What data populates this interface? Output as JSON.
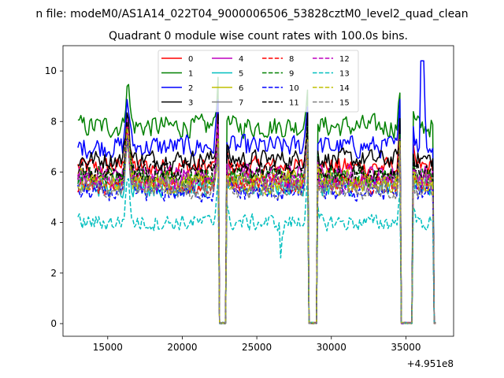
{
  "chart_data": {
    "type": "line",
    "suptitle": "n file: modeM0/AS1A14_022T04_9000006506_53828cztM0_level2_quad_clean",
    "title": "Quadrant 0 module wise count rates with 100.0s bins.",
    "xlabel": "",
    "ylabel": "",
    "offset_text": "+4.951e8",
    "xlim": [
      12000,
      38200
    ],
    "ylim": [
      -0.5,
      11.0
    ],
    "xticks": [
      15000,
      20000,
      25000,
      30000,
      35000
    ],
    "xtick_labels": [
      "15000",
      "20000",
      "25000",
      "30000",
      "35000"
    ],
    "yticks": [
      0,
      2,
      4,
      6,
      8,
      10
    ],
    "ytick_labels": [
      "0",
      "2",
      "4",
      "6",
      "8",
      "10"
    ],
    "grid": false,
    "legend_position": "upper center",
    "x_start": 13000,
    "x_end": 37000,
    "bin": 100,
    "gaps": [
      [
        22500,
        22950
      ],
      [
        28500,
        29050
      ],
      [
        34700,
        35450
      ],
      [
        36850,
        37000
      ]
    ],
    "series": [
      {
        "name": "0",
        "color": "#ff0000",
        "dash": "solid",
        "level": 6.2,
        "noise": 0.35
      },
      {
        "name": "1",
        "color": "#008000",
        "dash": "solid",
        "level": 7.8,
        "noise": 0.4
      },
      {
        "name": "2",
        "color": "#0000ff",
        "dash": "solid",
        "level": 7.0,
        "noise": 0.4
      },
      {
        "name": "3",
        "color": "#000000",
        "dash": "solid",
        "level": 6.5,
        "noise": 0.35
      },
      {
        "name": "4",
        "color": "#bf00bf",
        "dash": "solid",
        "level": 5.9,
        "noise": 0.35
      },
      {
        "name": "5",
        "color": "#00bfbf",
        "dash": "solid",
        "level": 5.4,
        "noise": 0.35
      },
      {
        "name": "6",
        "color": "#bfbf00",
        "dash": "solid",
        "level": 5.7,
        "noise": 0.35
      },
      {
        "name": "7",
        "color": "#808080",
        "dash": "solid",
        "level": 5.6,
        "noise": 0.35
      },
      {
        "name": "8",
        "color": "#ff0000",
        "dash": "dashed",
        "level": 5.5,
        "noise": 0.35
      },
      {
        "name": "9",
        "color": "#008000",
        "dash": "dashed",
        "level": 5.8,
        "noise": 0.35
      },
      {
        "name": "10",
        "color": "#0000ff",
        "dash": "dashed",
        "level": 5.2,
        "noise": 0.35
      },
      {
        "name": "11",
        "color": "#000000",
        "dash": "dashed",
        "level": 6.0,
        "noise": 0.35
      },
      {
        "name": "12",
        "color": "#bf00bf",
        "dash": "dashed",
        "level": 5.6,
        "noise": 0.35
      },
      {
        "name": "13",
        "color": "#00bfbf",
        "dash": "dashed",
        "level": 4.0,
        "noise": 0.3
      },
      {
        "name": "14",
        "color": "#bfbf00",
        "dash": "dashed",
        "level": 5.5,
        "noise": 0.35
      },
      {
        "name": "15",
        "color": "#808080",
        "dash": "dashed",
        "level": 5.3,
        "noise": 0.35
      }
    ]
  }
}
